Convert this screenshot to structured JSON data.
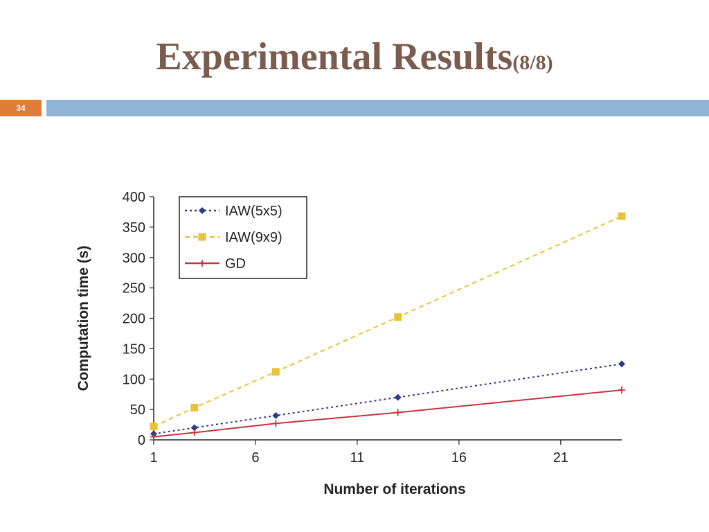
{
  "slide": {
    "title": "Experimental Results",
    "title_suffix": "(8/8)",
    "page_number": "34"
  },
  "colors": {
    "title": "#7a5c4f",
    "page_number_bg": "#e07b39",
    "title_bar": "#8fb4d5"
  },
  "chart_data": {
    "type": "line",
    "title": "",
    "xlabel": "Number of iterations",
    "ylabel": "Computation time (s)",
    "xlim": [
      1,
      24
    ],
    "ylim": [
      0,
      400
    ],
    "x_ticks": [
      1,
      6,
      11,
      16,
      21
    ],
    "y_ticks": [
      0,
      50,
      100,
      150,
      200,
      250,
      300,
      350,
      400
    ],
    "grid": false,
    "legend_position": "top-left",
    "series": [
      {
        "name": "IAW(5x5)",
        "color": "#2e3a87",
        "line_style": "dotted",
        "marker": "diamond",
        "x": [
          1,
          3,
          7,
          13,
          24
        ],
        "y": [
          10,
          20,
          40,
          70,
          125
        ]
      },
      {
        "name": "IAW(9x9)",
        "color": "#e8c23a",
        "line_style": "dashed",
        "marker": "square",
        "x": [
          1,
          3,
          7,
          13,
          24
        ],
        "y": [
          22,
          53,
          112,
          202,
          368
        ]
      },
      {
        "name": "GD",
        "color": "#c8323c",
        "line_style": "solid",
        "marker": "plus",
        "x": [
          1,
          3,
          7,
          13,
          24
        ],
        "y": [
          5,
          12,
          27,
          45,
          82
        ]
      }
    ]
  }
}
